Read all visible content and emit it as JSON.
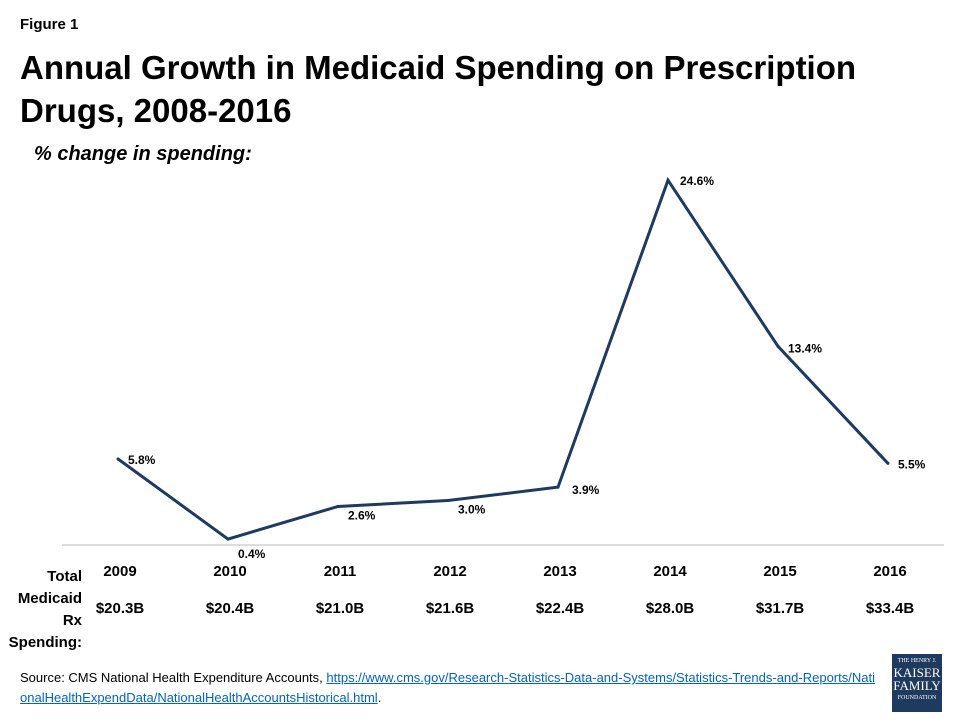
{
  "figure_label": "Figure 1",
  "title": "Annual Growth in Medicaid Spending on Prescription Drugs, 2008-2016",
  "subtitle": "% change in spending:",
  "row_label": "Total Medicaid Rx Spending:",
  "source_prefix": "Source: CMS National Health Expenditure Accounts, ",
  "source_link": "https://www.cms.gov/Research-Statistics-Data-and-Systems/Statistics-Trends-and-Reports/NationalHealthExpendData/NationalHealthAccountsHistorical.html",
  "source_suffix": ".",
  "logo": {
    "line1": "THE HENRY J.",
    "line2": "KAISER",
    "line3": "FAMILY",
    "line4": "FOUNDATION",
    "color": "#1f3a5f"
  },
  "chart_data": {
    "type": "line",
    "categories": [
      "2009",
      "2010",
      "2011",
      "2012",
      "2013",
      "2014",
      "2015",
      "2016"
    ],
    "values": [
      5.8,
      0.4,
      2.6,
      3.0,
      3.9,
      24.6,
      13.4,
      5.5
    ],
    "data_labels": [
      "5.8%",
      "0.4%",
      "2.6%",
      "3.0%",
      "3.9%",
      "24.6%",
      "13.4%",
      "5.5%"
    ],
    "totals": [
      "$20.3B",
      "$20.4B",
      "$21.0B",
      "$21.6B",
      "$22.4B",
      "$28.0B",
      "$31.7B",
      "$33.4B"
    ],
    "ylabel": "% change in spending:",
    "ylim": [
      0,
      25
    ],
    "grid": false,
    "line_color": "#1f3a5f"
  }
}
